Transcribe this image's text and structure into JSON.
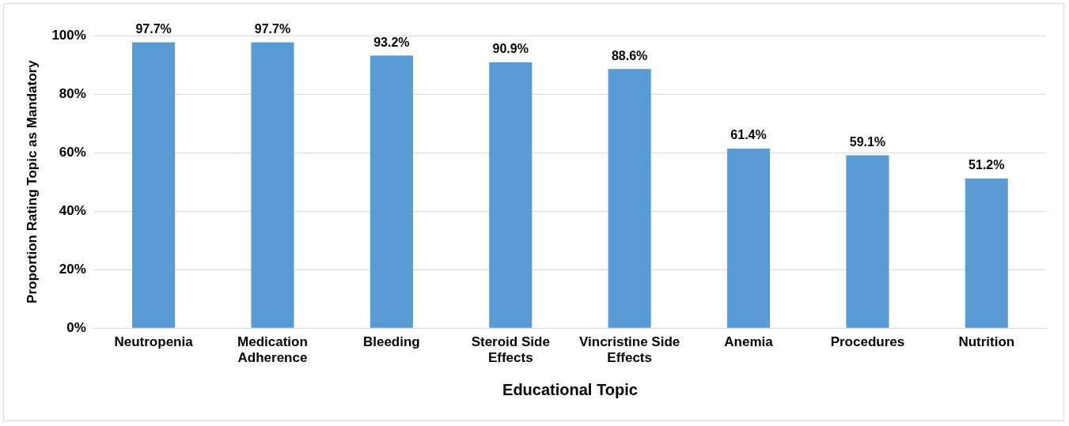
{
  "chart_data": {
    "type": "bar",
    "xlabel": "Educational Topic",
    "ylabel": "Proportion Rating Topic as Mandatory",
    "categories": [
      "Neutropenia",
      "Medication Adherence",
      "Bleeding",
      "Steroid Side Effects",
      "Vincristine Side Effects",
      "Anemia",
      "Procedures",
      "Nutrition"
    ],
    "values": [
      97.7,
      97.7,
      93.2,
      90.9,
      88.6,
      61.4,
      59.1,
      51.2
    ],
    "value_labels": [
      "97.7%",
      "97.7%",
      "93.2%",
      "90.9%",
      "88.6%",
      "61.4%",
      "59.1%",
      "51.2%"
    ],
    "color": "#5b9bd5",
    "ylim": [
      0,
      100
    ],
    "yticks": [
      {
        "value": 0,
        "label": "0%"
      },
      {
        "value": 20,
        "label": "20%"
      },
      {
        "value": 40,
        "label": "40%"
      },
      {
        "value": 60,
        "label": "60%"
      },
      {
        "value": 80,
        "label": "80%"
      },
      {
        "value": 100,
        "label": "100%"
      }
    ],
    "grid": "y",
    "legend": false
  }
}
